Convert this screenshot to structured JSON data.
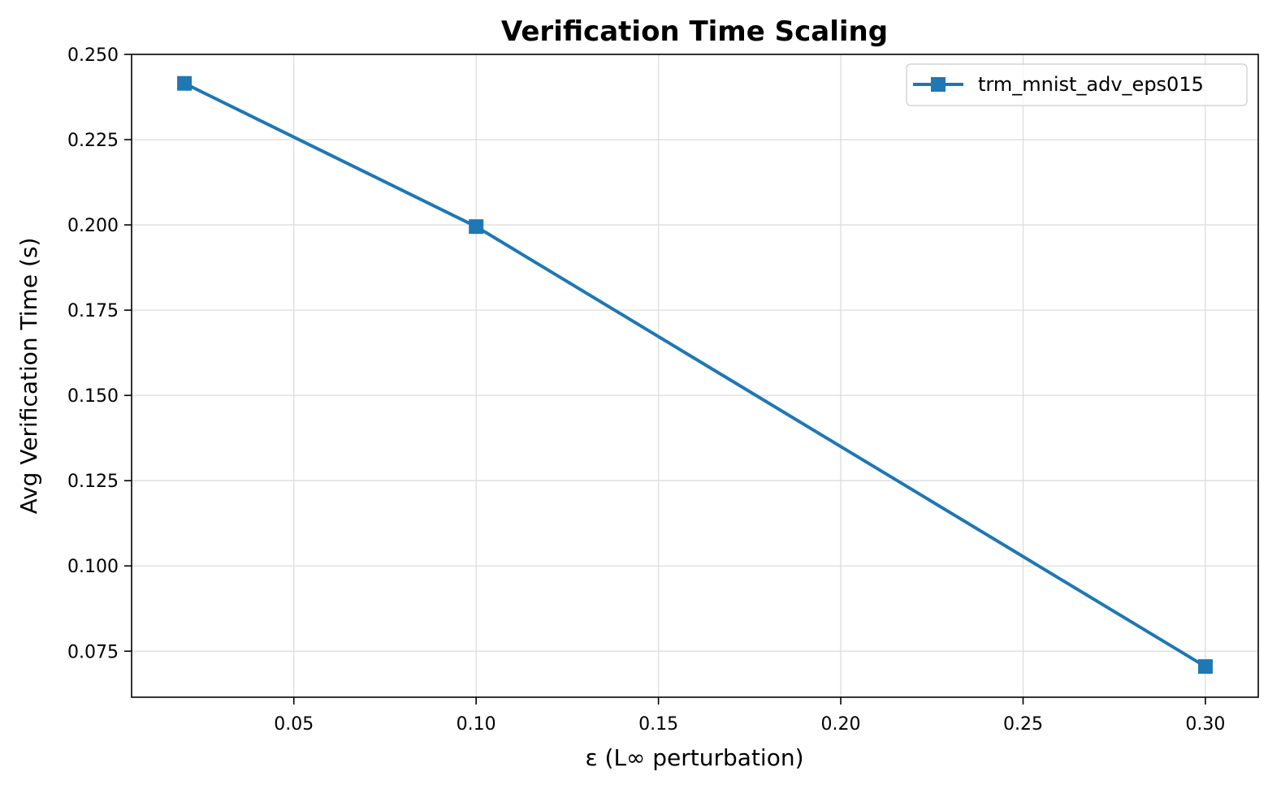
{
  "chart_data": {
    "type": "line",
    "title": "Verification Time Scaling",
    "xlabel": "ε (L∞ perturbation)",
    "ylabel": "Avg Verification Time (s)",
    "xlim": [
      0.0055,
      0.3145
    ],
    "ylim": [
      0.0615,
      0.25
    ],
    "xticks": [
      0.05,
      0.1,
      0.15,
      0.2,
      0.25,
      0.3
    ],
    "xtick_labels": [
      "0.05",
      "0.10",
      "0.15",
      "0.20",
      "0.25",
      "0.30"
    ],
    "yticks": [
      0.075,
      0.1,
      0.125,
      0.15,
      0.175,
      0.2,
      0.225,
      0.25
    ],
    "ytick_labels": [
      "0.075",
      "0.100",
      "0.125",
      "0.150",
      "0.175",
      "0.200",
      "0.225",
      "0.250"
    ],
    "grid": true,
    "legend_position": "top-right",
    "series": [
      {
        "name": "trm_mnist_adv_eps015",
        "color": "#1f77b4",
        "marker": "square",
        "x": [
          0.02,
          0.1,
          0.3
        ],
        "y": [
          0.2415,
          0.1995,
          0.0705
        ]
      }
    ]
  }
}
